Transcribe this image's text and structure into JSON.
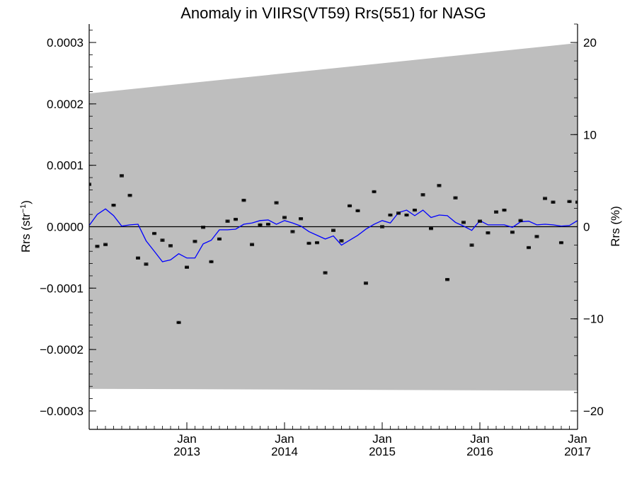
{
  "chart_data": {
    "type": "line",
    "title": "Anomaly in VIIRS(VT59) Rrs(551) for NASG",
    "ylabel": "Rrs (str",
    "ylabel_sup": "−1",
    "ylabel_close": ")",
    "y2label": "Rrs (%)",
    "xlim": [
      2012.0,
      2017.0
    ],
    "ylim": [
      -0.00033,
      0.00033
    ],
    "y2lim": [
      -22.0,
      22.0
    ],
    "x_ticks": [
      {
        "value": 2013,
        "month": "Jan",
        "year": "2013"
      },
      {
        "value": 2014,
        "month": "Jan",
        "year": "2014"
      },
      {
        "value": 2015,
        "month": "Jan",
        "year": "2015"
      },
      {
        "value": 2016,
        "month": "Jan",
        "year": "2016"
      },
      {
        "value": 2017,
        "month": "Jan",
        "year": "2017"
      }
    ],
    "y_ticks": [
      {
        "value": 0.0003,
        "label": "0.0003"
      },
      {
        "value": 0.0002,
        "label": "0.0002"
      },
      {
        "value": 0.0001,
        "label": "0.0001"
      },
      {
        "value": 0.0,
        "label": "0.0000"
      },
      {
        "value": -0.0001,
        "label": "−0.0001"
      },
      {
        "value": -0.0002,
        "label": "−0.0002"
      },
      {
        "value": -0.0003,
        "label": "−0.0003"
      }
    ],
    "y2_ticks": [
      {
        "value": 20,
        "label": "20"
      },
      {
        "value": 10,
        "label": "10"
      },
      {
        "value": 0,
        "label": "0"
      },
      {
        "value": -10,
        "label": "−10"
      },
      {
        "value": -20,
        "label": "−20"
      }
    ],
    "zero_line": 0.0,
    "band": {
      "x": [
        2012.0,
        2017.0
      ],
      "upper": [
        0.000217,
        0.000299
      ],
      "lower": [
        -0.000264,
        -0.000267
      ],
      "color": "#bebebe"
    },
    "series": [
      {
        "kind": "points-with-errorbars",
        "color": "#000000",
        "x": [
          2012.0,
          2012.083,
          2012.167,
          2012.25,
          2012.333,
          2012.417,
          2012.5,
          2012.583,
          2012.667,
          2012.75,
          2012.833,
          2012.917,
          2013.0,
          2013.083,
          2013.167,
          2013.25,
          2013.333,
          2013.417,
          2013.5,
          2013.583,
          2013.667,
          2013.75,
          2013.833,
          2013.917,
          2014.0,
          2014.083,
          2014.167,
          2014.25,
          2014.333,
          2014.417,
          2014.5,
          2014.583,
          2014.667,
          2014.75,
          2014.833,
          2014.917,
          2015.0,
          2015.083,
          2015.167,
          2015.25,
          2015.333,
          2015.417,
          2015.5,
          2015.583,
          2015.667,
          2015.75,
          2015.833,
          2015.917,
          2016.0,
          2016.083,
          2016.167,
          2016.25,
          2016.333,
          2016.417,
          2016.5,
          2016.583,
          2016.667,
          2016.75,
          2016.833,
          2016.917,
          2017.0
        ],
        "y": [
          6.9e-05,
          -3.2e-05,
          -2.9e-05,
          3.5e-05,
          8.3e-05,
          5.1e-05,
          -5.1e-05,
          -6.1e-05,
          -1.1e-05,
          -2.2e-05,
          -3.1e-05,
          -0.000156,
          -6.6e-05,
          -2.4e-05,
          -1e-06,
          -5.7e-05,
          -2e-05,
          9e-06,
          1.2e-05,
          4.3e-05,
          -2.9e-05,
          3e-06,
          4e-06,
          3.9e-05,
          1.5e-05,
          -8e-06,
          1.3e-05,
          -2.7e-05,
          -2.6e-05,
          -7.5e-05,
          -6e-06,
          -2.3e-05,
          3.4e-05,
          2.6e-05,
          -9.2e-05,
          5.7e-05,
          0.0,
          1.9e-05,
          2.2e-05,
          1.9e-05,
          2.7e-05,
          5.2e-05,
          -3e-06,
          6.7e-05,
          -8.6e-05,
          4.7e-05,
          7e-06,
          -3e-05,
          9e-06,
          -1e-05,
          2.4e-05,
          2.7e-05,
          -9e-06,
          1e-05,
          -3.4e-05,
          -1.6e-05,
          4.6e-05,
          4e-05,
          -2.6e-05,
          4.1e-05,
          4e-05
        ],
        "err": 2e-06
      },
      {
        "kind": "line",
        "color": "#0000ff",
        "x": [
          2012.0,
          2012.083,
          2012.167,
          2012.25,
          2012.333,
          2012.417,
          2012.5,
          2012.583,
          2012.667,
          2012.75,
          2012.833,
          2012.917,
          2013.0,
          2013.083,
          2013.167,
          2013.25,
          2013.333,
          2013.417,
          2013.5,
          2013.583,
          2013.667,
          2013.75,
          2013.833,
          2013.917,
          2014.0,
          2014.083,
          2014.167,
          2014.25,
          2014.333,
          2014.417,
          2014.5,
          2014.583,
          2014.667,
          2014.75,
          2014.833,
          2014.917,
          2015.0,
          2015.083,
          2015.167,
          2015.25,
          2015.333,
          2015.417,
          2015.5,
          2015.583,
          2015.667,
          2015.75,
          2015.833,
          2015.917,
          2016.0,
          2016.083,
          2016.167,
          2016.25,
          2016.333,
          2016.417,
          2016.5,
          2016.583,
          2016.667,
          2016.75,
          2016.833,
          2016.917,
          2017.0
        ],
        "y": [
          2e-06,
          2e-05,
          2.9e-05,
          1.8e-05,
          1e-06,
          3e-06,
          4e-06,
          -2.3e-05,
          -4e-05,
          -5.7e-05,
          -5.4e-05,
          -4.4e-05,
          -5.1e-05,
          -5.1e-05,
          -2.8e-05,
          -2.2e-05,
          -5e-06,
          -5e-06,
          -4e-06,
          4e-06,
          6e-06,
          1e-05,
          1.1e-05,
          4e-06,
          1e-05,
          6e-06,
          1e-06,
          -8e-06,
          -1.4e-05,
          -2e-05,
          -1.5e-05,
          -3e-05,
          -2.2e-05,
          -1.4e-05,
          -4e-06,
          4e-06,
          1e-05,
          6e-06,
          2.3e-05,
          2.7e-05,
          1.8e-05,
          2.7e-05,
          1.5e-05,
          1.9e-05,
          1.8e-05,
          7e-06,
          1e-06,
          -6e-06,
          1e-05,
          3e-06,
          3e-06,
          3e-06,
          -1e-06,
          8e-06,
          9e-06,
          3e-06,
          4e-06,
          3e-06,
          1e-06,
          2e-06,
          1e-05
        ]
      }
    ]
  }
}
